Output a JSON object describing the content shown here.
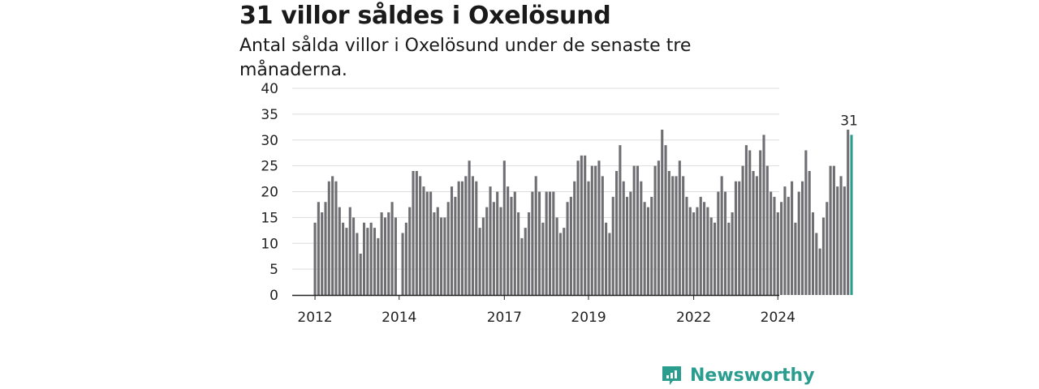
{
  "header": {
    "title": "31 villor såldes i Oxelösund",
    "subtitle": "Antal sålda villor i Oxelösund under de senaste tre månaderna."
  },
  "brand": {
    "name": "Newsworthy",
    "color": "#2a9d8f"
  },
  "colors": {
    "bar": "#6e6e73",
    "highlight": "#2a9d8f",
    "grid": "#dddddd",
    "axis": "#222222"
  },
  "chart_data": {
    "type": "bar",
    "title": "31 villor såldes i Oxelösund",
    "subtitle": "Antal sålda villor i Oxelösund under de senaste tre månaderna.",
    "xlabel": "",
    "ylabel": "",
    "ylim": [
      0,
      40
    ],
    "yticks": [
      0,
      5,
      10,
      15,
      20,
      25,
      30,
      35,
      40
    ],
    "grid": true,
    "start_period": "2012-01",
    "x_tick_labels": [
      "2012",
      "2014",
      "2017",
      "2019",
      "2022",
      "2024"
    ],
    "x_tick_index": [
      0,
      24,
      54,
      78,
      108,
      132
    ],
    "values": [
      14,
      18,
      16,
      18,
      22,
      23,
      22,
      17,
      14,
      13,
      17,
      15,
      12,
      8,
      14,
      13,
      14,
      13,
      11,
      16,
      15,
      16,
      18,
      15,
      0,
      12,
      14,
      17,
      24,
      24,
      23,
      21,
      20,
      20,
      16,
      17,
      15,
      15,
      18,
      21,
      19,
      22,
      22,
      23,
      26,
      23,
      22,
      13,
      15,
      17,
      21,
      18,
      20,
      17,
      26,
      21,
      19,
      20,
      16,
      11,
      13,
      16,
      20,
      23,
      20,
      14,
      20,
      20,
      20,
      15,
      12,
      13,
      18,
      19,
      22,
      26,
      27,
      27,
      22,
      25,
      25,
      26,
      23,
      14,
      12,
      19,
      24,
      29,
      22,
      19,
      20,
      25,
      25,
      22,
      18,
      17,
      19,
      25,
      26,
      32,
      29,
      24,
      23,
      23,
      26,
      23,
      19,
      17,
      16,
      17,
      19,
      18,
      17,
      15,
      14,
      20,
      23,
      20,
      14,
      16,
      22,
      22,
      25,
      29,
      28,
      24,
      23,
      28,
      31,
      25,
      20,
      19,
      16,
      18,
      21,
      19,
      22,
      14,
      20,
      22,
      28,
      24,
      16,
      12,
      9,
      15,
      18,
      25,
      25,
      21,
      23,
      21,
      32,
      31
    ],
    "highlight_last": true,
    "data_label": "31"
  }
}
